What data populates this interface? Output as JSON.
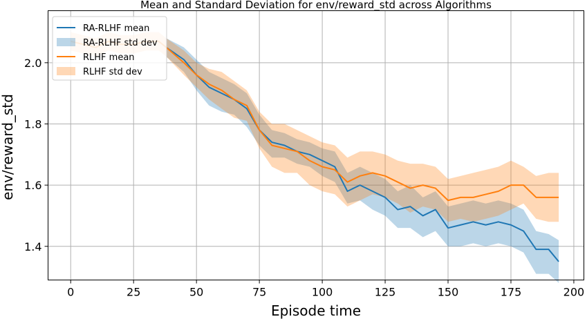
{
  "chart_data": {
    "type": "line",
    "title": "Mean and Standard Deviation for env/reward_std across Algorithms",
    "xlabel": "Episode time",
    "ylabel": "env/reward_std",
    "xlim": [
      -9,
      204
    ],
    "ylim": [
      1.29,
      2.17
    ],
    "xticks": [
      0,
      25,
      50,
      75,
      100,
      125,
      150,
      175,
      200
    ],
    "yticks": [
      1.4,
      1.6,
      1.8,
      2.0
    ],
    "xtick_labels": [
      "0",
      "25",
      "50",
      "75",
      "100",
      "125",
      "150",
      "175",
      "200"
    ],
    "ytick_labels": [
      "1.4",
      "1.6",
      "1.8",
      "2.0"
    ],
    "grid": true,
    "legend_position": "top-left",
    "series": [
      {
        "name": "RA-RLHF mean",
        "kind": "line",
        "color": "#1f77b4",
        "x": [
          38,
          45,
          50,
          55,
          60,
          65,
          70,
          75,
          80,
          85,
          90,
          95,
          100,
          105,
          110,
          115,
          120,
          125,
          130,
          135,
          140,
          145,
          150,
          155,
          160,
          165,
          170,
          175,
          180,
          185,
          190,
          194
        ],
        "y": [
          2.05,
          2.01,
          1.96,
          1.92,
          1.9,
          1.88,
          1.85,
          1.78,
          1.74,
          1.73,
          1.71,
          1.7,
          1.68,
          1.66,
          1.58,
          1.6,
          1.58,
          1.56,
          1.52,
          1.53,
          1.5,
          1.52,
          1.46,
          1.47,
          1.48,
          1.47,
          1.48,
          1.47,
          1.45,
          1.39,
          1.39,
          1.35
        ]
      },
      {
        "name": "RA-RLHF std dev",
        "kind": "band",
        "color": "#1f77b4",
        "x": [
          38,
          45,
          50,
          55,
          60,
          65,
          70,
          75,
          80,
          85,
          90,
          95,
          100,
          105,
          110,
          115,
          120,
          125,
          130,
          135,
          140,
          145,
          150,
          155,
          160,
          165,
          170,
          175,
          180,
          185,
          190,
          194
        ],
        "upper": [
          2.08,
          2.05,
          2.01,
          1.97,
          1.95,
          1.93,
          1.9,
          1.83,
          1.78,
          1.77,
          1.75,
          1.74,
          1.72,
          1.71,
          1.64,
          1.66,
          1.64,
          1.62,
          1.58,
          1.6,
          1.56,
          1.58,
          1.53,
          1.54,
          1.55,
          1.54,
          1.55,
          1.54,
          1.52,
          1.45,
          1.44,
          1.42
        ],
        "lower": [
          2.02,
          1.97,
          1.91,
          1.86,
          1.84,
          1.83,
          1.79,
          1.73,
          1.69,
          1.69,
          1.67,
          1.66,
          1.63,
          1.61,
          1.54,
          1.55,
          1.52,
          1.5,
          1.46,
          1.46,
          1.43,
          1.45,
          1.4,
          1.4,
          1.41,
          1.4,
          1.41,
          1.4,
          1.38,
          1.31,
          1.31,
          1.28
        ]
      },
      {
        "name": "RLHF mean",
        "kind": "line",
        "color": "#ff7f0e",
        "x": [
          0,
          5,
          10,
          15,
          20,
          25,
          30,
          35,
          38,
          45,
          50,
          55,
          60,
          65,
          70,
          75,
          80,
          85,
          90,
          95,
          100,
          105,
          110,
          115,
          120,
          125,
          130,
          135,
          140,
          145,
          150,
          155,
          160,
          165,
          170,
          175,
          180,
          185,
          190,
          194
        ],
        "y": [
          2.07,
          2.06,
          2.05,
          2.07,
          2.06,
          2.06,
          2.07,
          2.07,
          2.05,
          2.0,
          1.96,
          1.93,
          1.91,
          1.88,
          1.86,
          1.78,
          1.73,
          1.72,
          1.71,
          1.68,
          1.66,
          1.65,
          1.61,
          1.63,
          1.64,
          1.63,
          1.61,
          1.59,
          1.6,
          1.59,
          1.55,
          1.56,
          1.56,
          1.57,
          1.58,
          1.6,
          1.6,
          1.56,
          1.56,
          1.56
        ]
      },
      {
        "name": "RLHF std dev",
        "kind": "band",
        "color": "#ff7f0e",
        "x": [
          0,
          5,
          10,
          15,
          20,
          25,
          30,
          35,
          38,
          45,
          50,
          55,
          60,
          65,
          70,
          75,
          80,
          85,
          90,
          95,
          100,
          105,
          110,
          115,
          120,
          125,
          130,
          135,
          140,
          145,
          150,
          155,
          160,
          165,
          170,
          175,
          180,
          185,
          190,
          194
        ],
        "upper": [
          2.1,
          2.09,
          2.08,
          2.1,
          2.09,
          2.09,
          2.1,
          2.1,
          2.08,
          2.04,
          2.0,
          1.98,
          1.97,
          1.94,
          1.91,
          1.84,
          1.8,
          1.8,
          1.78,
          1.76,
          1.74,
          1.73,
          1.69,
          1.71,
          1.71,
          1.7,
          1.68,
          1.67,
          1.67,
          1.66,
          1.62,
          1.63,
          1.64,
          1.65,
          1.66,
          1.68,
          1.66,
          1.63,
          1.64,
          1.64
        ],
        "lower": [
          2.04,
          2.03,
          2.02,
          2.04,
          2.03,
          2.03,
          2.04,
          2.04,
          2.02,
          1.96,
          1.92,
          1.88,
          1.85,
          1.82,
          1.81,
          1.72,
          1.66,
          1.64,
          1.64,
          1.6,
          1.58,
          1.57,
          1.53,
          1.55,
          1.57,
          1.56,
          1.54,
          1.51,
          1.53,
          1.52,
          1.48,
          1.49,
          1.48,
          1.49,
          1.5,
          1.52,
          1.54,
          1.49,
          1.48,
          1.48
        ]
      }
    ]
  }
}
